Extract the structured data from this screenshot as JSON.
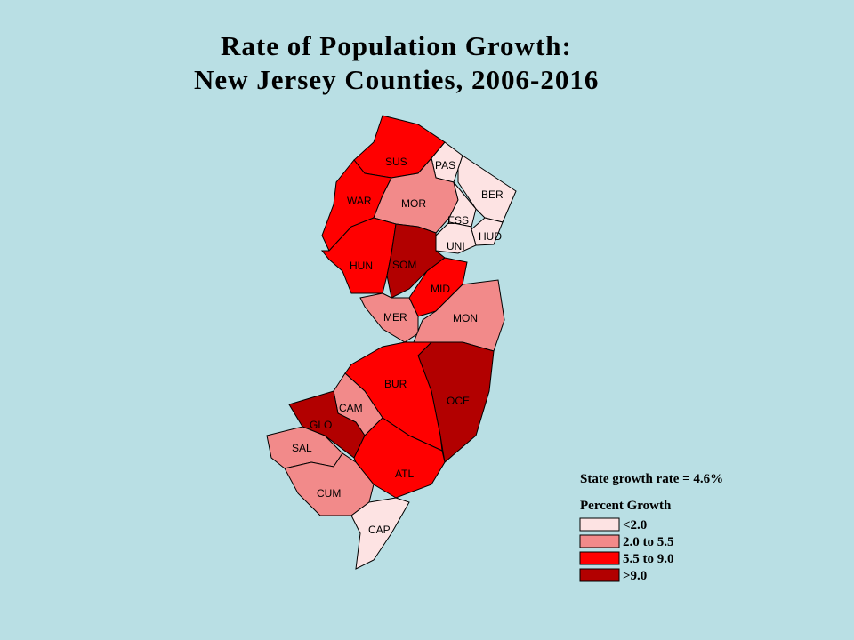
{
  "title_lines": [
    "Rate of Population Growth:",
    "New Jersey Counties, 2006-2016"
  ],
  "state_note": "State growth rate = 4.6%",
  "legend": {
    "title": "Percent Growth",
    "items": [
      {
        "label": "<2.0",
        "color": "#fde3e3"
      },
      {
        "label": "2.0 to 5.5",
        "color": "#f28a8a"
      },
      {
        "label": "5.5 to 9.0",
        "color": "#ff0000"
      },
      {
        "label": ">9.0",
        "color": "#b20000"
      }
    ]
  },
  "counties": [
    {
      "label": "SUS",
      "class": 2
    },
    {
      "label": "PAS",
      "class": 0
    },
    {
      "label": "BER",
      "class": 0
    },
    {
      "label": "WAR",
      "class": 2
    },
    {
      "label": "MOR",
      "class": 1
    },
    {
      "label": "ESS",
      "class": 0
    },
    {
      "label": "HUD",
      "class": 0
    },
    {
      "label": "UNI",
      "class": 0
    },
    {
      "label": "HUN",
      "class": 2
    },
    {
      "label": "SOM",
      "class": 3
    },
    {
      "label": "MID",
      "class": 2
    },
    {
      "label": "MER",
      "class": 1
    },
    {
      "label": "MON",
      "class": 1
    },
    {
      "label": "OCE",
      "class": 3
    },
    {
      "label": "BUR",
      "class": 2
    },
    {
      "label": "CAM",
      "class": 1
    },
    {
      "label": "GLO",
      "class": 3
    },
    {
      "label": "SAL",
      "class": 1
    },
    {
      "label": "ATL",
      "class": 2
    },
    {
      "label": "CUM",
      "class": 1
    },
    {
      "label": "CAP",
      "class": 0
    }
  ]
}
